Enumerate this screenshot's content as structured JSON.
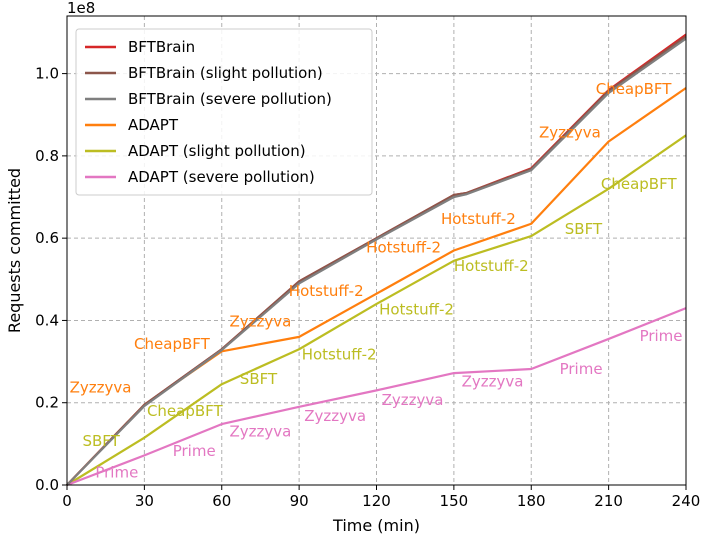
{
  "chart_data": {
    "type": "line",
    "title": "",
    "xlabel": "Time (min)",
    "ylabel": "Requests committed",
    "y_offset_label": "1e8",
    "xlim": [
      0,
      240
    ],
    "ylim": [
      0,
      1.14
    ],
    "xticks": [
      0,
      30,
      60,
      90,
      120,
      150,
      180,
      210,
      240
    ],
    "yticks": [
      0.0,
      0.2,
      0.4,
      0.6,
      0.8,
      1.0
    ],
    "ytick_labels": [
      "0.0",
      "0.2",
      "0.4",
      "0.6",
      "0.8",
      "1.0"
    ],
    "grid": true,
    "legend_position": "top-left",
    "series": [
      {
        "name": "BFTBrain",
        "color": "#d62728",
        "x": [
          0,
          30,
          60,
          90,
          120,
          150,
          155,
          180,
          210,
          240
        ],
        "y": [
          0,
          0.195,
          0.33,
          0.495,
          0.6,
          0.705,
          0.71,
          0.77,
          0.96,
          1.095
        ]
      },
      {
        "name": "BFTBrain (slight pollution)",
        "color": "#8c564b",
        "x": [
          0,
          30,
          60,
          90,
          120,
          150,
          155,
          180,
          210,
          240
        ],
        "y": [
          0,
          0.195,
          0.33,
          0.495,
          0.6,
          0.705,
          0.71,
          0.768,
          0.958,
          1.09
        ]
      },
      {
        "name": "BFTBrain (severe pollution)",
        "color": "#7f7f7f",
        "x": [
          0,
          30,
          60,
          90,
          120,
          150,
          155,
          180,
          210,
          240
        ],
        "y": [
          0,
          0.192,
          0.328,
          0.49,
          0.597,
          0.7,
          0.707,
          0.765,
          0.953,
          1.085
        ]
      },
      {
        "name": "ADAPT",
        "color": "#ff7f0e",
        "x": [
          0,
          30,
          60,
          90,
          120,
          150,
          180,
          210,
          240
        ],
        "y": [
          0,
          0.195,
          0.325,
          0.36,
          0.465,
          0.57,
          0.635,
          0.835,
          0.965
        ]
      },
      {
        "name": "ADAPT (slight pollution)",
        "color": "#bcbd22",
        "x": [
          0,
          30,
          60,
          90,
          120,
          150,
          180,
          210,
          240
        ],
        "y": [
          0,
          0.115,
          0.245,
          0.33,
          0.44,
          0.545,
          0.605,
          0.72,
          0.85
        ]
      },
      {
        "name": "ADAPT (severe pollution)",
        "color": "#e377c2",
        "x": [
          0,
          30,
          60,
          90,
          120,
          150,
          180,
          210,
          240
        ],
        "y": [
          0,
          0.072,
          0.148,
          0.19,
          0.23,
          0.272,
          0.282,
          0.355,
          0.43
        ]
      }
    ],
    "annotations": [
      {
        "text": "Zyzzyva",
        "x": 1,
        "y": 0.225,
        "color": "#ff7f0e"
      },
      {
        "text": "CheapBFT",
        "x": 26,
        "y": 0.33,
        "color": "#ff7f0e"
      },
      {
        "text": "Zyzzyva",
        "x": 63,
        "y": 0.385,
        "color": "#ff7f0e"
      },
      {
        "text": "Hotstuff-2",
        "x": 86,
        "y": 0.46,
        "color": "#ff7f0e"
      },
      {
        "text": "Hotstuff-2",
        "x": 116,
        "y": 0.565,
        "color": "#ff7f0e"
      },
      {
        "text": "Hotstuff-2",
        "x": 145,
        "y": 0.635,
        "color": "#ff7f0e"
      },
      {
        "text": "Zyzzyva",
        "x": 183,
        "y": 0.845,
        "color": "#ff7f0e"
      },
      {
        "text": "CheapBFT",
        "x": 205,
        "y": 0.95,
        "color": "#ff7f0e"
      },
      {
        "text": "SBFT",
        "x": 6,
        "y": 0.095,
        "color": "#bcbd22"
      },
      {
        "text": "CheapBFT",
        "x": 31,
        "y": 0.168,
        "color": "#bcbd22"
      },
      {
        "text": "SBFT",
        "x": 67,
        "y": 0.245,
        "color": "#bcbd22"
      },
      {
        "text": "Hotstuff-2",
        "x": 91,
        "y": 0.305,
        "color": "#bcbd22"
      },
      {
        "text": "Hotstuff-2",
        "x": 121,
        "y": 0.415,
        "color": "#bcbd22"
      },
      {
        "text": "Hotstuff-2",
        "x": 150,
        "y": 0.52,
        "color": "#bcbd22"
      },
      {
        "text": "SBFT",
        "x": 193,
        "y": 0.61,
        "color": "#bcbd22"
      },
      {
        "text": "CheapBFT",
        "x": 207,
        "y": 0.72,
        "color": "#bcbd22"
      },
      {
        "text": "Prime",
        "x": 11,
        "y": 0.018,
        "color": "#e377c2"
      },
      {
        "text": "Prime",
        "x": 41,
        "y": 0.07,
        "color": "#e377c2"
      },
      {
        "text": "Zyzzyva",
        "x": 63,
        "y": 0.118,
        "color": "#e377c2"
      },
      {
        "text": "Zyzzyva",
        "x": 92,
        "y": 0.155,
        "color": "#e377c2"
      },
      {
        "text": "Zyzzyva",
        "x": 122,
        "y": 0.195,
        "color": "#e377c2"
      },
      {
        "text": "Zyzzyva",
        "x": 153,
        "y": 0.24,
        "color": "#e377c2"
      },
      {
        "text": "Prime",
        "x": 191,
        "y": 0.27,
        "color": "#e377c2"
      },
      {
        "text": "Prime",
        "x": 222,
        "y": 0.35,
        "color": "#e377c2"
      }
    ]
  }
}
